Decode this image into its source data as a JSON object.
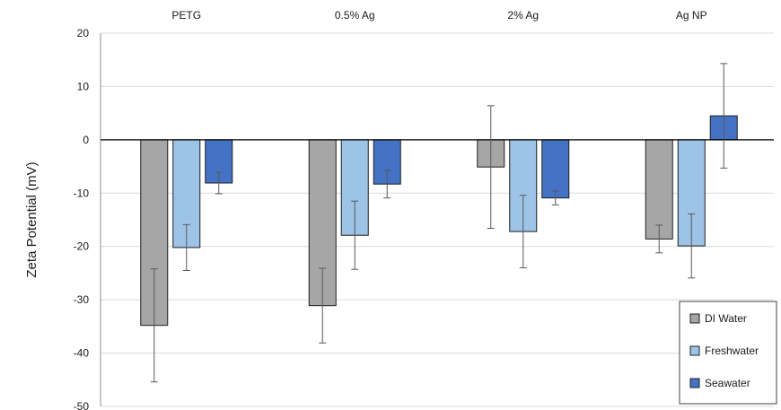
{
  "chart_data": {
    "type": "bar",
    "categories": [
      "PETG",
      "0.5% Ag",
      "2% Ag",
      "Ag NP"
    ],
    "series": [
      {
        "name": "DI Water",
        "color": "#a6a6a6",
        "values": [
          -34.8,
          -31.1,
          -5.1,
          -18.6
        ],
        "errors": [
          10.6,
          7.0,
          11.5,
          2.6
        ]
      },
      {
        "name": "Freshwater",
        "color": "#9dc3e6",
        "values": [
          -20.2,
          -17.9,
          -17.2,
          -19.9
        ],
        "errors": [
          4.3,
          6.4,
          6.8,
          6.0
        ]
      },
      {
        "name": "Seawater",
        "color": "#4472c4",
        "values": [
          -8.1,
          -8.3,
          -10.9,
          4.5
        ],
        "errors": [
          2.0,
          2.6,
          1.3,
          9.8
        ]
      }
    ],
    "title": "",
    "xlabel": "",
    "ylabel": "Zeta Potential  (mV)",
    "ylim": [
      -50,
      20
    ],
    "yticks": [
      20,
      10,
      0,
      -10,
      -20,
      -30,
      -40,
      -50
    ],
    "grid": true,
    "category_labels_position": "top",
    "legend_position": "bottom-right"
  }
}
